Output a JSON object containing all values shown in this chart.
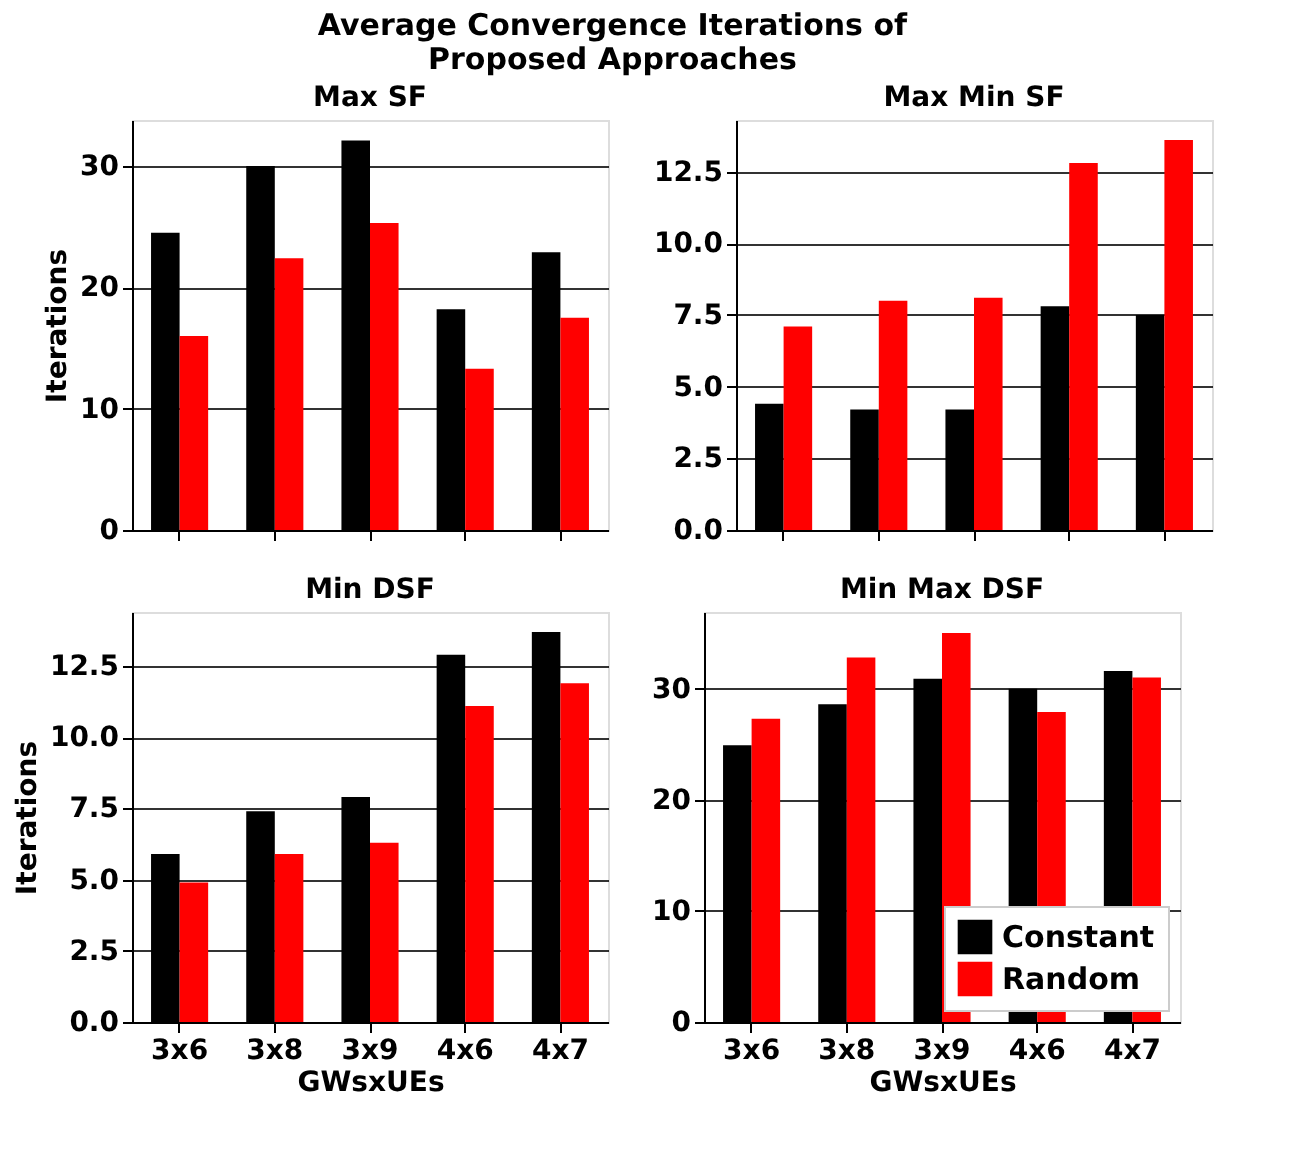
{
  "chart_data": [
    {
      "type": "bar",
      "title": "Max SF",
      "annotations": [
        "Average Convergence Iterations of\nProposed Approaches"
      ],
      "ylabel": "Iterations",
      "categories": [
        null,
        null,
        null,
        null,
        null
      ],
      "ylim": [
        0,
        33.8
      ],
      "yticks": [
        0,
        10,
        20,
        30
      ],
      "grid": "y",
      "legend": false,
      "tick_labels": "y",
      "series": [
        {
          "color": "#000000",
          "values": [
            24.5,
            30,
            32.1,
            18.2,
            22.9
          ]
        },
        {
          "color": "#ff0000",
          "values": [
            16,
            22.4,
            25.3,
            13.3,
            17.5
          ]
        }
      ]
    },
    {
      "type": "bar",
      "title": "Max Min SF",
      "categories": [
        null,
        null,
        null,
        null,
        null
      ],
      "ylim": [
        0,
        14.3
      ],
      "yticks": [
        {
          "value": 0,
          "label": "0.0"
        },
        2.5,
        {
          "value": 5,
          "label": "5.0"
        },
        7.5,
        {
          "value": 10,
          "label": "10.0"
        },
        12.5
      ],
      "grid": "y",
      "legend": false,
      "tick_labels": "y",
      "series": [
        {
          "color": "#000000",
          "values": [
            4.4,
            4.2,
            4.2,
            7.8,
            7.5
          ]
        },
        {
          "color": "#ff0000",
          "values": [
            7.1,
            8.0,
            8.1,
            12.8,
            13.6
          ]
        }
      ]
    },
    {
      "type": "bar",
      "title": "Min DSF",
      "xlabel": "GWsxUEs",
      "ylabel": "Iterations",
      "categories": [
        "3x6",
        "3x8",
        "3x9",
        "4x6",
        "4x7"
      ],
      "ylim": [
        0,
        14.4
      ],
      "yticks": [
        {
          "value": 0,
          "label": "0.0"
        },
        2.5,
        {
          "value": 5,
          "label": "5.0"
        },
        7.5,
        {
          "value": 10,
          "label": "10.0"
        },
        12.5
      ],
      "grid": "y",
      "legend": false,
      "series": [
        {
          "color": "#000000",
          "values": [
            5.9,
            7.4,
            7.9,
            12.9,
            13.7
          ]
        },
        {
          "color": "#ff0000",
          "values": [
            4.9,
            5.9,
            6.3,
            11.1,
            11.9
          ]
        }
      ]
    },
    {
      "type": "bar",
      "title": "Min Max DSF",
      "xlabel": "GWsxUEs",
      "categories": [
        "3x6",
        "3x8",
        "3x9",
        "4x6",
        "4x7"
      ],
      "ylim": [
        0,
        36.9
      ],
      "yticks": [
        0,
        10,
        20,
        30
      ],
      "grid": "y",
      "legend": "bottom right",
      "series": [
        {
          "name": "Constant",
          "color": "#000000",
          "values": [
            24.9,
            28.6,
            30.9,
            30.0,
            31.6
          ]
        },
        {
          "name": "Random",
          "color": "#ff0000",
          "values": [
            27.3,
            32.8,
            35.0,
            27.9,
            31.0
          ]
        }
      ]
    }
  ]
}
